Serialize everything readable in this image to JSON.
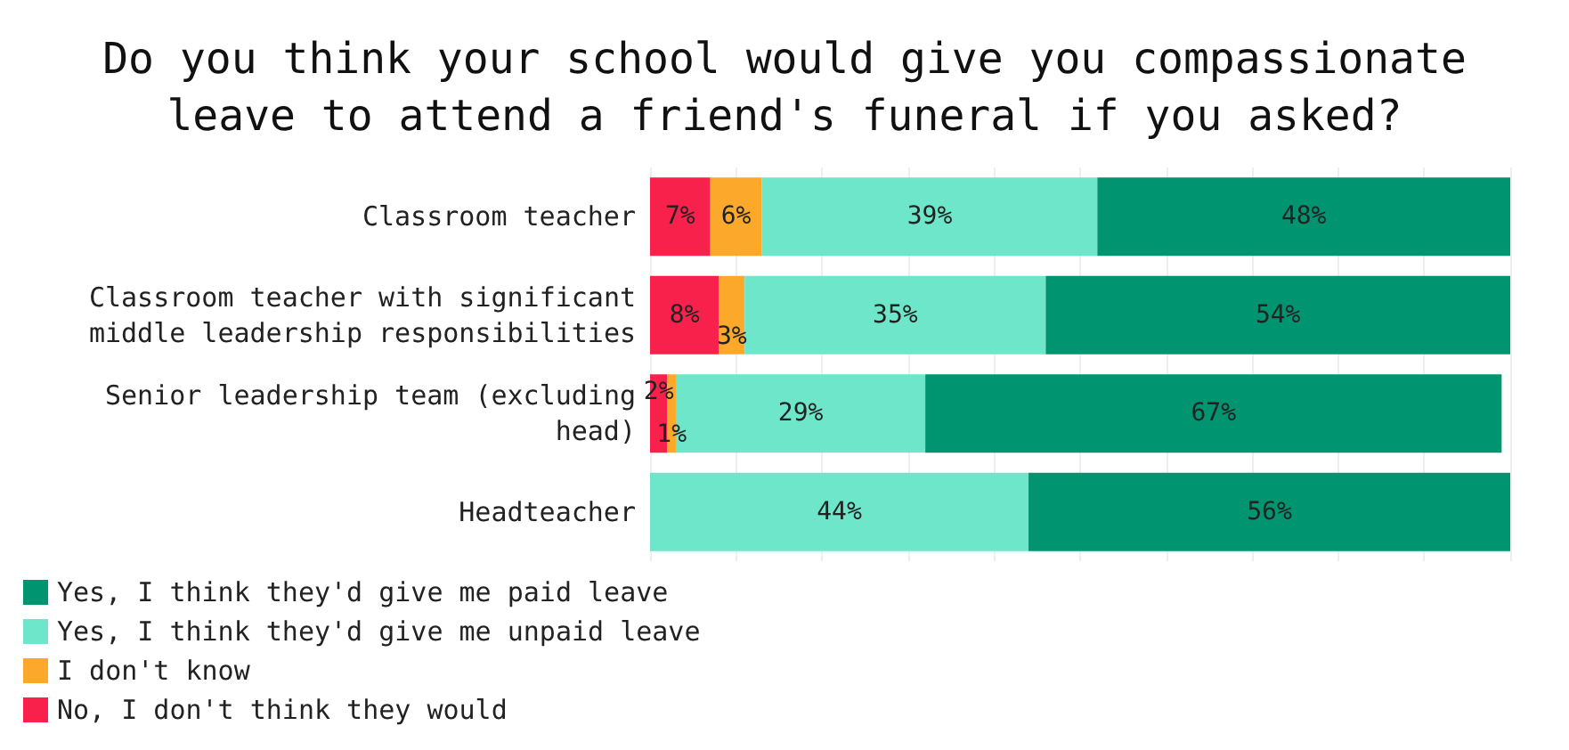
{
  "chart_data": {
    "type": "bar",
    "orientation": "horizontal",
    "stacked": true,
    "title": "Do you think your school would give you compassionate\nleave to attend a friend's funeral if you asked?",
    "categories": [
      "Classroom teacher",
      "Classroom teacher with significant\nmiddle leadership responsibilities",
      "Senior leadership team (excluding\nhead)",
      "Headteacher"
    ],
    "series": [
      {
        "name": "No, I don't think they would",
        "color": "#f7214c",
        "values": [
          7,
          8,
          2,
          0
        ],
        "value_labels": [
          "7%",
          "8%",
          "2%",
          null
        ]
      },
      {
        "name": "I don't know",
        "color": "#fca82a",
        "values": [
          6,
          3,
          1,
          0
        ],
        "value_labels": [
          "6%",
          "3%",
          "1%",
          null
        ]
      },
      {
        "name": "Yes, I think they'd give me unpaid leave",
        "color": "#6ee6c9",
        "values": [
          39,
          35,
          29,
          44
        ],
        "value_labels": [
          "39%",
          "35%",
          "29%",
          "44%"
        ]
      },
      {
        "name": "Yes, I think they'd give me paid leave",
        "color": "#009470",
        "values": [
          48,
          54,
          67,
          56
        ],
        "value_labels": [
          "48%",
          "54%",
          "67%",
          "56%"
        ]
      }
    ],
    "xlim": [
      0,
      100
    ],
    "xticks": [
      {
        "value": 0,
        "label": null
      },
      {
        "value": 10,
        "label": null
      },
      {
        "value": 20,
        "label": null
      },
      {
        "value": 30,
        "label": null
      },
      {
        "value": 40,
        "label": null
      },
      {
        "value": 50,
        "label": null
      },
      {
        "value": 60,
        "label": null
      },
      {
        "value": 70,
        "label": null
      },
      {
        "value": 80,
        "label": null
      },
      {
        "value": 90,
        "label": null
      },
      {
        "value": 100,
        "label": null
      }
    ],
    "tick_labels": "y",
    "grid": "x",
    "legend": "bottom left"
  }
}
